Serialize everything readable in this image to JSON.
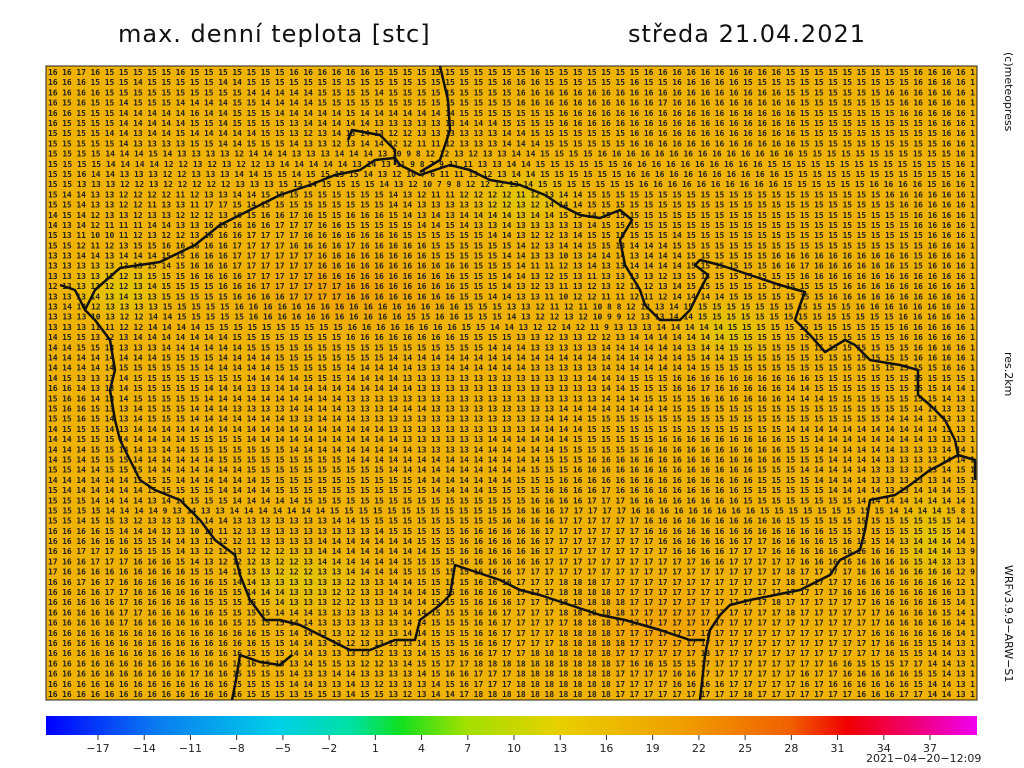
{
  "header": {
    "title": "max. denní teplota [stc]",
    "date": "středa 21.04.2021"
  },
  "side": {
    "copyright": "(c)meteopress",
    "resolution": "res.2km",
    "model": "WRFv3.9.9−ARW−S1"
  },
  "footer": {
    "timestamp": "2021−04−20−12:09"
  },
  "colorbar": {
    "labels": [
      "−17",
      "−14",
      "−11",
      "−8",
      "−5",
      "−2",
      "1",
      "4",
      "7",
      "10",
      "13",
      "16",
      "19",
      "22",
      "25",
      "28",
      "31",
      "34",
      "37"
    ]
  },
  "grid": {
    "rows": [
      "16 16 17 16 15 15 15 15 15 16 15 15 15 15 15 15 15 16 16 16 16 16 16 15 15 15 15 15 15 15 15 15 15 15 16 15 15 15 15 15 15 15 16 16 16 16 16 16 16 16 16 16 15 15 15 15 15 15 15 15 15 16 16 16 16 1",
      "16 16 16 15 15 15 14 15 15 15 15 15 14 14 15 15 15 15 15 15 15 15 15 15 15 15 15 15 15 15 15 15 16 16 16 15 15 15 15 15 15 16 15 15 16 16 16 16 16 15 15 15 15 15 15 15 15 15 15 15 15 16 16 16 16 1",
      "16 16 16 16 15 15 15 15 15 15 15 15 15 15 14 14 14 14 14 15 15 15 15 14 15 15 15 15 15 15 15 15 15 16 16 16 16 16 16 16 16 16 16 16 16 16 16 16 16 16 16 16 15 15 15 15 15 15 15 16 16 16 16 16 16 1",
      "16 15 16 15 15 14 15 15 15 14 14 14 14 15 15 14 14 14 14 15 15 15 15 15 15 15 15 15 15 15 15 15 15 16 16 16 16 16 16 16 16 16 16 17 16 16 16 16 16 16 16 16 16 15 15 15 15 15 15 15 16 16 16 16 16 1",
      "16 16 15 15 15 14 14 14 14 14 16 14 14 15 15 15 14 14 14 14 14 15 14 14 14 14 14 14 14 15 15 15 15 15 15 15 16 16 16 16 16 16 16 16 16 16 16 16 16 16 16 16 16 15 15 15 15 15 15 15 16 16 16 16 16 1",
      "16 15 15 15 15 14 14 14 14 14 15 15 14 15 15 15 15 13 14 14 14 14 14 13 13 13 13 13 13 14 14 14 15 15 15 15 16 16 16 16 16 16 16 16 16 16 16 16 16 16 16 16 16 15 15 15 15 15 15 15 15 15 16 16 16 1",
      "15 15 15 15 14 14 13 14 14 15 14 14 14 14 14 15 15 13 12 13 14 13 14 13 12 12 13 13 13 13 13 13 14 14 15 15 15 15 15 15 15 16 16 16 16 16 16 16 16 16 16 16 16 15 15 15 15 15 15 15 15 15 15 16 16 1",
      "15 15 15 15 15 14 13 13 13 13 15 15 14 14 15 15 15 14 13 13 12 13 14 14 12 12 11 11 12 13 13 13 14 14 14 15 15 15 15 15 15 16 16 16 16 16 16 16 16 16 16 16 16 15 15 15 15 15 15 15 15 15 15 16 16 1",
      "15 15 15 15 14 14 14 15 14 13 13 13 13 12 14 14 14 13 13 13 14 14 14 13 10 9 8 12 12 13 12 13 13 14 14 15 15 15 15 16 16 16 16 16 16 16 16 16 16 16 16 16 16 15 15 15 15 15 15 15 15 15 15 15 16 1",
      "15 15 15 15 14 14 14 14 12 12 13 12 13 12 12 13 14 14 14 14 14 13 14 13 11 9 8 7 9 11 11 13 13 14 14 15 15 15 15 15 15 16 16 16 16 16 16 16 16 16 16 15 15 15 15 15 15 15 15 15 15 15 15 15 16 1",
      "15 15 16 14 14 13 13 13 12 12 13 13 13 14 14 15 15 14 15 15 15 15 14 13 12 10 7 6 11 11 13 12 13 14 14 15 15 15 15 15 15 16 16 16 16 16 16 16 16 16 16 16 15 15 15 15 15 15 15 15 15 15 15 15 16 1",
      "15 15 13 13 13 12 12 13 12 12 12 12 12 13 13 13 15 15 14 15 15 15 15 14 13 12 10 7 9 8 12 12 12 13 14 15 15 15 15 15 15 15 16 16 16 16 16 16 16 16 16 16 15 15 15 15 15 15 16 16 16 16 15 16 16 1",
      "15 14 14 13 13 12 12 12 12 11 12 13 13 14 14 15 15 15 15 15 15 15 15 15 14 13 12 11 11 12 12 12 12 11 12 13 14 14 15 15 15 15 15 15 15 15 15 15 15 15 15 15 15 15 15 15 15 15 15 16 16 16 16 16 16 1",
      "15 15 14 13 13 12 12 11 13 13 11 17 17 15 14 15 15 15 15 15 15 15 15 15 14 14 13 13 13 13 13 12 12 13 12 14 14 14 15 15 15 15 15 15 15 15 15 15 15 15 15 15 15 15 15 15 15 15 15 15 16 16 16 16 16 1",
      "14 15 14 12 13 13 12 13 13 12 12 12 13 16 15 16 16 17 16 15 15 16 16 16 15 14 13 14 13 14 14 14 14 13 14 14 15 15 14 15 15 15 15 15 15 15 15 15 15 15 15 15 15 15 15 15 15 15 15 15 15 16 16 16 16 1",
      "14 13 14 12 11 11 11 14 14 13 13 16 16 16 16 16 17 17 17 16 16 15 15 15 15 15 14 14 15 14 13 13 14 13 13 13 13 13 14 15 15 15 15 15 15 15 15 15 15 15 15 15 15 15 15 15 15 15 15 15 15 16 16 16 16 1",
      "15 13 11 10 10 11 12 13 12 12 13 16 16 16 17 17 17 17 16 16 16 16 16 16 16 15 15 15 15 15 15 14 14 13 12 12 13 14 15 15 15 15 15 15 14 15 15 15 15 15 15 15 15 15 15 15 15 15 15 15 15 15 16 16 16 1",
      "15 15 12 11 12 13 15 15 16 16 16 16 16 17 17 17 17 16 16 16 16 17 16 16 16 16 16 15 15 15 15 15 15 14 12 13 14 14 15 15 13 14 14 14 15 15 15 15 15 15 15 15 15 15 15 15 15 15 15 15 15 15 16 16 16 1",
      "13 13 14 14 13 14 14 14 15 15 16 16 16 17 17 17 17 17 17 16 16 16 16 16 16 16 16 15 15 15 15 15 14 14 13 13 10 13 14 14 14 13 14 14 14 15 15 15 15 15 15 16 16 16 16 16 16 16 16 16 16 15 16 16 16 1",
      "13 13 13 13 13 13 13 15 14 15 16 16 16 17 17 17 17 17 17 16 16 16 16 16 16 16 16 16 16 16 15 15 15 14 11 11 12 13 14 13 13 14 14 14 14 15 15 15 15 15 15 16 16 17 16 16 16 16 16 16 15 15 16 16 16 1",
      "13 13 13 13 12 12 13 15 15 15 16 16 16 16 17 17 17 17 17 16 16 16 16 16 16 16 16 16 16 15 15 15 14 14 13 12 15 13 11 13 13 13 13 12 13 15 15 15 15 15 15 15 15 16 16 16 16 16 16 16 16 16 16 16 16 1",
      "12 13 13 13 12 12 13 14 15 15 15 15 16 16 16 17 17 17 17 17 17 16 16 16 16 16 16 16 16 15 15 15 14 13 12 13 11 13 12 13 12 12 12 13 14 15 15 15 15 15 15 15 15 15 15 15 16 16 16 16 16 16 16 16 16 1",
      "13 13 13 14 13 14 13 13 15 15 15 15 15 16 16 16 16 17 17 17 17 16 16 16 16 16 16 16 16 15 15 14 14 13 13 11 10 12 12 11 11 12 11 12 14 14 14 14 15 15 15 15 15 15 15 16 16 16 16 16 16 16 16 16 16 1",
      "13 14 14 12 13 13 13 13 15 15 15 15 15 16 16 16 16 16 16 16 16 16 16 16 16 16 16 16 16 15 15 15 13 13 12 11 12 11 10 8 8 12 12 13 14 15 15 15 15 15 15 15 15 15 15 15 15 16 16 16 16 16 16 16 16 1",
      "13 13 13 10 13 12 12 14 14 15 15 15 15 15 16 16 16 16 16 16 16 16 16 16 16 15 15 16 16 15 15 15 14 13 12 12 13 12 10 9 9 12 13 13 14 14 15 15 15 15 15 15 15 15 15 15 15 15 15 15 16 16 16 16 16 1",
      "13 13 13 11 11 12 12 14 14 14 14 15 15 15 15 15 15 15 15 15 15 16 16 16 16 16 16 16 16 15 15 14 14 13 12 12 14 12 11 9 13 13 13 14 14 14 14 14 15 15 15 15 15 15 15 15 15 15 15 15 16 16 16 16 16 1",
      "14 15 15 13 12 13 14 14 14 14 14 14 14 15 15 15 15 15 15 15 15 16 16 16 16 16 16 16 16 15 15 15 15 13 13 12 13 13 12 12 13 14 14 14 14 14 14 14 15 15 15 15 15 15 15 15 15 15 15 15 16 16 16 16 16 1",
      "14 14 15 15 13 13 13 13 14 14 14 14 14 14 15 15 15 15 15 15 15 15 15 15 15 15 15 15 15 15 15 14 14 14 13 13 13 13 13 14 14 14 14 14 14 13 14 14 15 15 15 15 15 15 15 15 15 15 15 15 15 16 16 16 16 1",
      "14 14 14 14 14 14 14 14 15 15 15 15 14 14 14 14 15 15 15 15 15 15 15 15 14 14 14 14 14 14 14 14 14 14 14 14 14 14 14 14 14 14 14 14 14 15 14 14 15 15 15 15 15 15 15 15 15 15 15 15 15 16 16 16 16 1",
      "14 14 14 14 14 15 15 15 15 15 15 14 14 14 14 14 15 15 15 15 15 14 14 14 14 14 13 13 14 14 14 14 14 14 13 13 13 13 13 14 14 14 14 14 14 14 15 15 15 15 15 15 15 15 15 15 15 15 15 15 15 15 15 16 16 1",
      "14 15 13 13 13 14 15 15 15 15 15 15 15 15 14 14 14 14 15 15 15 14 14 14 14 13 13 13 13 13 13 13 13 13 13 13 13 13 14 14 14 15 15 15 16 16 16 16 16 16 16 16 16 16 15 15 15 15 15 15 15 15 15 15 15 1",
      "16 16 14 13 13 14 15 15 15 15 15 14 14 14 13 13 14 14 14 14 14 14 14 14 14 14 13 13 13 13 13 13 13 13 13 13 13 13 13 14 14 15 15 15 16 16 17 16 16 16 16 16 14 14 15 15 15 15 15 15 15 15 15 14 14 1",
      "15 16 16 14 13 14 15 15 15 15 15 14 14 14 14 14 14 14 14 14 14 13 13 13 13 13 13 13 13 13 13 13 13 13 13 13 13 13 13 14 14 14 15 15 15 15 16 16 16 16 16 16 14 14 14 15 15 15 15 15 15 15 15 14 13 1",
      "15 16 16 15 13 13 14 15 15 15 14 14 14 13 13 13 13 14 14 14 14 13 13 13 14 14 14 13 13 13 13 13 13 13 13 13 14 14 14 14 14 14 14 14 15 15 15 15 15 15 15 15 15 15 15 15 15 15 15 15 15 14 14 13 13 1",
      "15 15 16 15 14 13 14 15 15 15 14 14 14 14 14 14 14 13 13 14 14 14 13 13 13 13 13 13 13 13 13 13 13 13 13 14 14 14 15 15 15 15 15 15 15 15 15 15 15 15 15 15 15 15 15 15 15 15 15 14 14 14 13 13 13 1",
      "14 15 15 15 14 13 14 14 14 14 14 14 14 14 14 14 14 14 14 14 14 14 14 14 13 13 13 13 13 13 13 13 13 13 14 14 14 14 15 15 15 15 15 15 15 15 15 15 15 15 15 15 14 14 14 14 14 14 14 14 14 14 14 13 13 1",
      "14 14 15 15 15 14 14 14 14 14 15 15 15 15 14 14 14 14 14 14 14 14 14 14 14 13 13 13 13 13 13 14 14 14 14 14 14 15 15 15 15 15 15 16 16 16 16 16 16 16 16 16 15 15 14 14 14 14 14 14 14 14 13 13 13 1",
      "14 14 14 15 15 14 14 13 14 14 15 15 15 15 15 15 15 14 14 14 14 14 14 14 14 14 13 13 13 13 14 14 14 14 14 14 15 15 15 15 15 15 16 16 16 16 16 16 16 16 16 16 15 15 14 14 14 14 14 14 13 13 13 14 14 1",
      "14 15 14 15 15 15 14 14 14 14 14 14 15 15 15 15 15 15 15 15 15 14 14 14 14 14 14 14 14 14 14 14 14 14 14 15 15 15 16 16 16 16 16 16 16 16 16 16 16 16 16 16 15 15 15 14 14 14 14 13 13 13 13 14 14 1",
      "15 15 14 14 15 15 15 14 14 14 14 14 14 14 15 15 15 15 15 15 15 15 15 15 14 14 14 14 14 14 14 14 14 14 15 15 15 16 16 16 16 16 16 16 16 16 16 16 16 16 15 15 15 14 14 14 14 14 13 13 13 13 13 14 15 1",
      "14 14 14 14 14 14 15 15 15 14 14 14 14 14 14 15 15 15 15 15 15 15 15 15 15 15 14 14 14 14 14 14 14 15 15 15 16 16 16 16 16 16 16 16 16 16 16 16 16 16 15 15 15 15 14 14 14 14 13 13 13 13 13 14 15 1",
      "15 14 14 14 14 14 14 15 15 15 15 15 14 14 14 14 15 15 15 15 15 15 15 15 15 15 15 14 14 14 14 15 15 15 15 16 16 16 16 17 16 16 16 16 16 16 16 16 16 15 15 15 15 15 15 14 14 14 14 13 13 14 14 14 15 1",
      "15 15 15 14 14 14 14 13 14 14 15 15 15 14 14 14 14 14 15 15 15 15 15 15 15 15 15 15 15 15 15 15 15 15 16 16 16 16 17 17 17 16 16 16 16 16 16 16 16 15 15 15 15 15 15 15 15 14 14 14 14 14 14 14 14 1",
      "15 15 15 15 14 14 14 14 9 13 14 13 13 14 14 14 14 14 14 14 15 15 15 15 15 15 15 15 15 15 15 15 15 16 16 16 17 17 17 17 17 16 16 16 16 16 16 16 16 16 15 15 15 15 15 15 15 15 15 14 14 14 14 15 8 1",
      "15 15 14 15 15 13 12 13 13 13 11 14 14 13 13 13 13 13 13 13 14 14 15 15 15 15 15 15 15 15 15 15 16 16 16 16 17 17 17 17 17 17 16 16 16 16 16 16 16 16 16 16 15 15 15 15 15 15 15 15 15 15 15 15 14 1",
      "16 16 16 16 15 14 14 14 13 13 10 10 11 12 13 13 13 13 13 13 13 13 13 14 15 15 15 15 15 16 16 16 16 16 16 17 17 17 17 17 17 17 16 16 16 16 16 16 16 16 16 16 16 16 16 15 15 15 15 15 15 15 15 15 14 1",
      "16 16 16 16 16 16 15 15 14 14 13 11 12 12 11 13 13 13 13 14 14 14 14 14 14 14 15 15 15 16 16 16 16 16 16 17 17 17 17 17 17 17 17 16 16 16 16 16 16 17 17 16 16 16 16 15 16 16 15 14 13 14 14 14 14 1",
      "16 16 17 17 17 16 15 15 15 14 13 12 12 13 12 12 12 13 13 14 14 14 14 14 14 14 14 15 15 16 16 16 16 16 16 17 17 17 17 17 17 17 17 17 16 16 16 16 17 17 17 16 16 16 16 16 16 16 16 16 15 14 14 14 13 9",
      "17 16 16 17 17 17 16 16 16 15 14 13 12 12 12 13 12 12 13 14 14 14 14 14 14 15 15 15 15 16 16 16 16 16 16 17 17 17 17 17 17 17 17 17 17 17 16 16 17 17 17 17 17 16 16 16 16 16 16 16 16 15 14 13 13 1",
      "17 16 16 16 16 16 16 16 16 16 15 15 14 13 13 13 12 12 12 13 13 14 14 14 14 15 15 15 15 15 16 16 16 17 17 17 17 17 17 17 17 17 17 17 17 17 17 17 17 17 17 17 18 17 17 17 17 16 16 16 16 16 16 16 12 9",
      "16 16 17 16 17 16 16 16 16 16 16 16 15 14 14 13 13 13 13 13 13 12 13 13 14 14 15 15 15 15 16 16 16 17 17 17 18 18 18 17 17 17 17 17 17 17 17 17 17 17 17 17 18 17 17 17 17 16 16 16 16 16 16 16 12 1",
      "16 16 16 16 17 17 16 16 16 16 16 16 15 15 14 14 14 13 13 13 12 12 13 13 14 14 14 15 15 16 16 16 16 17 17 17 18 18 18 18 17 17 17 17 17 17 17 17 17 17 17 17 17 17 17 17 16 16 16 16 16 16 16 16 13 1",
      "16 16 16 16 16 17 16 16 16 16 16 15 15 15 15 15 14 13 13 13 12 12 13 13 13 14 14 15 15 15 16 16 16 17 17 17 18 18 18 18 18 17 17 17 17 17 17 17 17 17 17 18 17 17 17 17 17 17 16 16 16 16 16 15 14 1",
      "16 16 16 16 16 17 17 16 16 16 16 16 15 15 15 15 14 14 14 13 13 13 13 13 14 14 14 15 15 15 16 16 17 17 17 17 18 18 18 18 18 17 17 17 17 17 17 17 17 17 17 17 18 17 17 17 17 17 17 16 16 16 16 15 14 1",
      "16 16 16 16 16 17 16 16 16 16 16 16 16 15 15 15 15 14 14 13 13 13 13 13 13 14 14 15 15 15 16 16 17 17 17 17 17 18 18 18 17 17 17 17 17 17 17 17 17 17 17 17 17 17 17 17 17 17 17 16 16 16 16 16 14 1",
      "16 16 16 16 16 16 16 16 16 16 16 16 16 16 16 15 15 14 14 13 13 12 12 13 13 14 14 15 15 15 16 16 17 17 17 17 18 18 18 18 17 17 17 17 17 17 17 17 17 17 17 17 17 17 17 17 17 17 16 16 16 16 16 16 14 1",
      "16 16 16 16 16 16 16 16 16 16 16 16 16 16 16 15 15 14 14 13 13 12 13 13 13 13 14 15 15 15 16 16 17 17 17 17 18 18 18 18 18 17 17 17 17 17 17 17 17 17 17 17 17 17 17 17 17 17 17 16 16 15 15 14 13 1",
      "16 16 16 16 16 16 16 16 16 16 16 16 16 16 15 15 15 14 14 13 13 13 13 12 13 13 14 15 15 16 16 17 17 17 18 18 18 18 18 18 17 17 17 17 17 17 18 17 17 17 17 17 17 17 17 17 17 17 17 16 15 15 14 14 13 1",
      "16 16 16 16 16 16 16 16 16 16 16 16 16 16 16 15 15 13 14 15 15 13 12 12 13 14 15 15 17 17 18 18 18 18 18 18 18 18 18 18 17 16 16 15 15 15 17 17 17 17 17 17 17 17 17 16 16 15 15 15 17 17 14 14 13 1",
      "16 16 16 16 16 16 16 16 16 16 17 16 16 15 15 15 15 14 13 13 14 14 13 13 13 13 14 15 16 16 17 17 17 18 18 18 18 18 18 18 17 17 17 17 16 16 17 17 17 17 17 17 17 16 17 17 16 16 16 16 16 15 15 14 13 1",
      "16 16 16 16 16 16 16 16 16 16 16 16 16 15 15 15 15 14 14 13 13 14 13 12 13 13 13 14 15 16 17 17 17 18 18 18 18 18 18 18 17 17 17 17 16 16 16 16 17 17 17 17 17 16 17 16 16 16 16 16 16 15 14 14 13 1",
      "16 16 16 16 16 16 16 16 16 16 16 16 16 16 15 15 15 13 15 15 13 14 15 15 13 12 13 14 14 17 18 18 18 18 18 18 18 18 18 18 17 17 17 17 17 17 17 17 17 18 17 17 17 17 17 17 17 16 16 16 17 17 14 14 13 1"
    ]
  }
}
